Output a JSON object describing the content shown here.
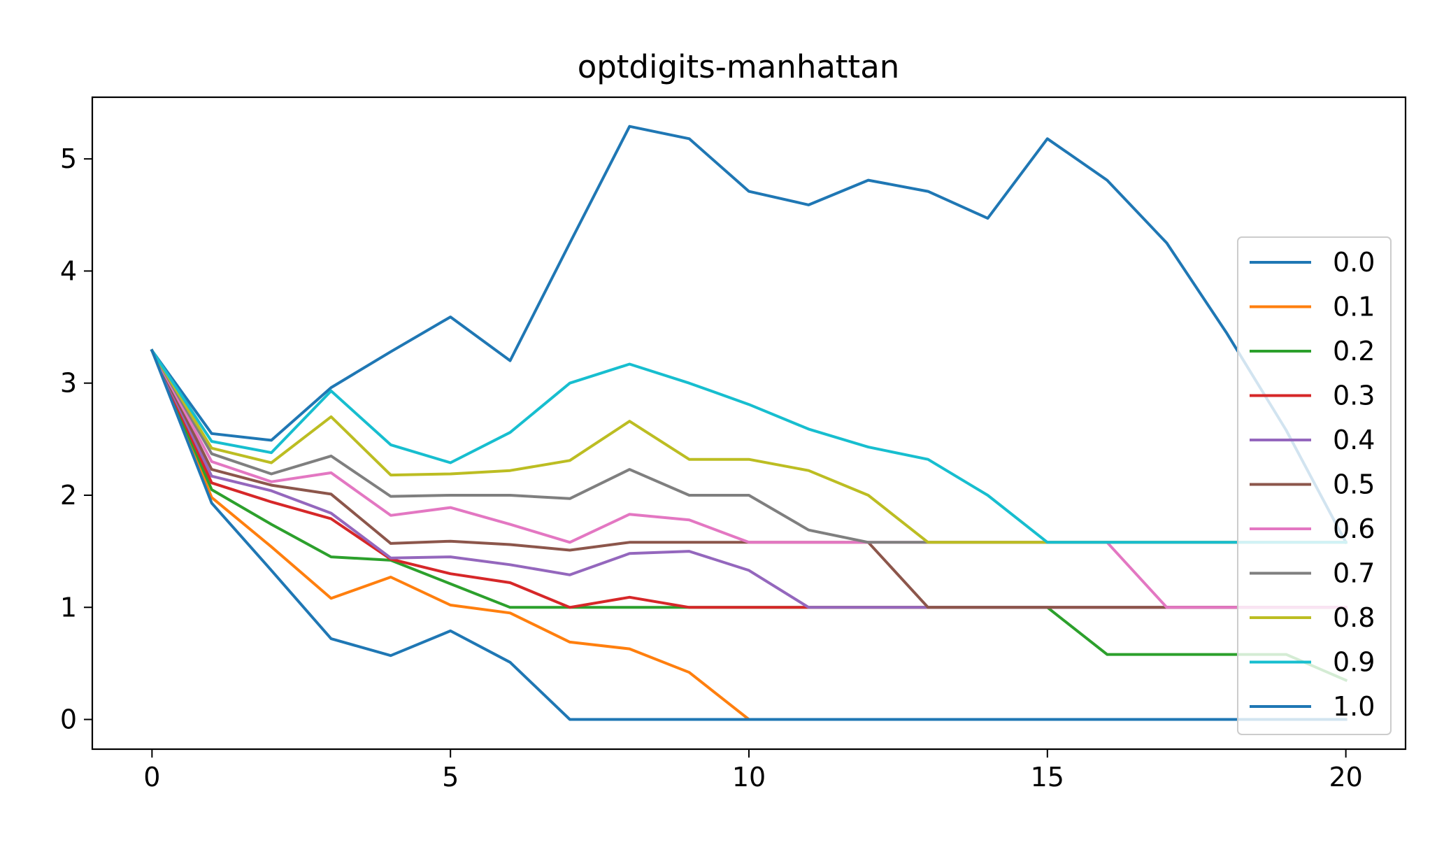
{
  "chart_data": {
    "type": "line",
    "title": "optdigits-manhattan",
    "xlabel": "",
    "ylabel": "",
    "xlim": [
      -1,
      21
    ],
    "ylim": [
      -0.265,
      5.55
    ],
    "x_ticks": [
      0,
      5,
      10,
      15,
      20
    ],
    "y_ticks": [
      0,
      1,
      2,
      3,
      4,
      5
    ],
    "grid": false,
    "legend_position": "right",
    "x": [
      0,
      1,
      2,
      3,
      4,
      5,
      6,
      7,
      8,
      9,
      10,
      11,
      12,
      13,
      14,
      15,
      16,
      17,
      18,
      19,
      20
    ],
    "series": [
      {
        "name": "0.0",
        "color": "#1f77b4",
        "values": [
          3.29,
          2.55,
          2.49,
          2.96,
          3.28,
          3.59,
          3.2,
          4.25,
          5.29,
          5.18,
          4.71,
          4.59,
          4.81,
          4.71,
          4.47,
          5.18,
          4.81,
          4.25,
          3.45,
          2.58,
          1.58
        ]
      },
      {
        "name": "0.1",
        "color": "#ff7f0e",
        "values": [
          3.29,
          1.98,
          1.54,
          1.08,
          1.27,
          1.02,
          0.95,
          0.69,
          0.63,
          0.42,
          0,
          0,
          0,
          0,
          0,
          0,
          0,
          0,
          0,
          0,
          0
        ]
      },
      {
        "name": "0.2",
        "color": "#2ca02c",
        "values": [
          3.29,
          2.05,
          1.74,
          1.45,
          1.42,
          1.21,
          1.0,
          1.0,
          1.0,
          1.0,
          1.0,
          1.0,
          1.0,
          1.0,
          1.0,
          1.0,
          0.58,
          0.58,
          0.58,
          0.58,
          0.35
        ]
      },
      {
        "name": "0.3",
        "color": "#d62728",
        "values": [
          3.29,
          2.11,
          1.94,
          1.79,
          1.43,
          1.3,
          1.22,
          1.0,
          1.09,
          1.0,
          1.0,
          1.0,
          1.0,
          1.0,
          1.0,
          1.0,
          1.0,
          1.0,
          1.0,
          1.0,
          1.0
        ]
      },
      {
        "name": "0.4",
        "color": "#9467bd",
        "values": [
          3.29,
          2.17,
          2.04,
          1.84,
          1.44,
          1.45,
          1.38,
          1.29,
          1.48,
          1.5,
          1.33,
          1.0,
          1.0,
          1.0,
          1.0,
          1.0,
          1.0,
          1.0,
          1.0,
          1.0,
          1.0
        ]
      },
      {
        "name": "0.5",
        "color": "#8c564b",
        "values": [
          3.29,
          2.23,
          2.09,
          2.01,
          1.57,
          1.59,
          1.56,
          1.51,
          1.58,
          1.58,
          1.58,
          1.58,
          1.58,
          1.0,
          1.0,
          1.0,
          1.0,
          1.0,
          1.0,
          1.0,
          1.0
        ]
      },
      {
        "name": "0.6",
        "color": "#e377c2",
        "values": [
          3.29,
          2.3,
          2.12,
          2.2,
          1.82,
          1.89,
          1.74,
          1.58,
          1.83,
          1.78,
          1.58,
          1.58,
          1.58,
          1.58,
          1.58,
          1.58,
          1.58,
          1.0,
          1.0,
          1.0,
          1.0
        ]
      },
      {
        "name": "0.7",
        "color": "#7f7f7f",
        "values": [
          3.29,
          2.37,
          2.19,
          2.35,
          1.99,
          2.0,
          2.0,
          1.97,
          2.23,
          2.0,
          2.0,
          1.69,
          1.58,
          1.58,
          1.58,
          1.58,
          1.58,
          1.58,
          1.58,
          1.58,
          1.58
        ]
      },
      {
        "name": "0.8",
        "color": "#bcbd22",
        "values": [
          3.29,
          2.42,
          2.29,
          2.7,
          2.18,
          2.19,
          2.22,
          2.31,
          2.66,
          2.32,
          2.32,
          2.22,
          2.0,
          1.58,
          1.58,
          1.58,
          1.58,
          1.58,
          1.58,
          1.58,
          1.58
        ]
      },
      {
        "name": "0.9",
        "color": "#17becf",
        "values": [
          3.29,
          2.48,
          2.38,
          2.93,
          2.45,
          2.29,
          2.56,
          3.0,
          3.17,
          3.0,
          2.81,
          2.59,
          2.43,
          2.32,
          2.0,
          1.58,
          1.58,
          1.58,
          1.58,
          1.58,
          1.58
        ]
      },
      {
        "name": "1.0",
        "color": "#1f77b4",
        "values": [
          3.29,
          1.93,
          1.33,
          0.72,
          0.57,
          0.79,
          0.51,
          0,
          0,
          0,
          0,
          0,
          0,
          0,
          0,
          0,
          0,
          0,
          0,
          0,
          0
        ]
      }
    ]
  }
}
